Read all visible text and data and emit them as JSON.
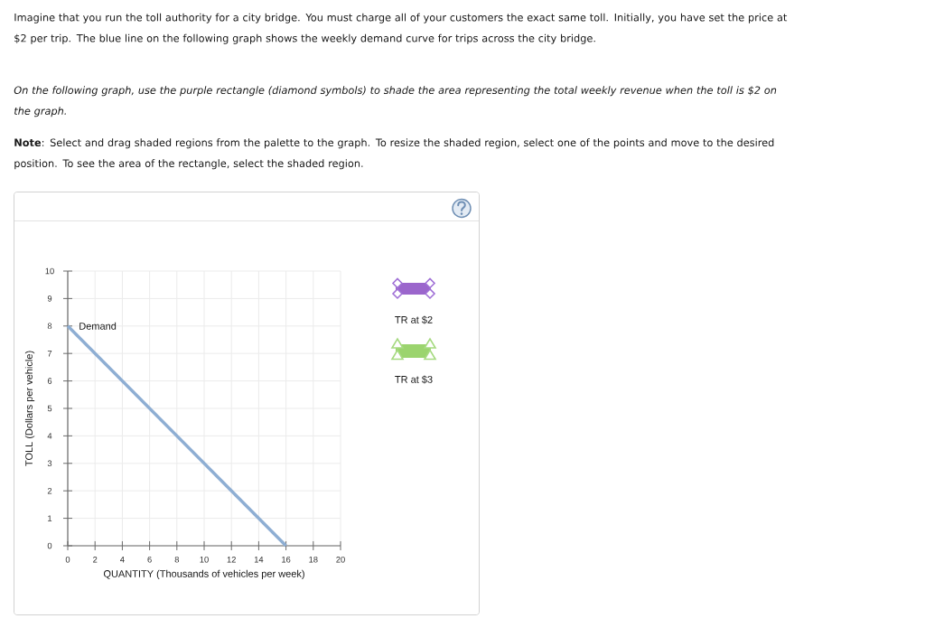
{
  "chart_data": {
    "type": "line",
    "title": "Imagine that you run the toll authority for a city bridge. You must charge all of your customers the exact same toll. Initially, you have set the price at $2 per trip. The blue line on the following graph shows the weekly demand curve for trips across the city bridge.",
    "subtitle": "On the following graph, use the purple rectangle (diamond symbols) to shade the area representing the total weekly revenue when the toll is $2 on the graph.",
    "annotations": [
      "**Note**: Select and drag shaded regions from the palette to the graph. To resize the shaded region, select one of the points and move to the desired position. To see the area of the rectangle, select the shaded region.",
      "TR at $2",
      "TR at $3"
    ],
    "xlabel": "QUANTITY (Thousands of vehicles per week)",
    "ylabel": "TOLL (Dollars per vehicle)",
    "series": [
      {
        "name": "Demand",
        "color": "#8eaed3",
        "x": [
          0,
          16
        ],
        "values": [
          8,
          0
        ]
      }
    ],
    "xlim": [
      0,
      20
    ],
    "ylim": [
      0,
      10
    ],
    "xticks": [
      0,
      2,
      4,
      6,
      8,
      10,
      12,
      14,
      16,
      18,
      20
    ],
    "yticks": [
      0,
      1,
      2,
      3,
      4,
      5,
      6,
      7,
      8,
      9,
      10
    ],
    "grid": true
  }
}
